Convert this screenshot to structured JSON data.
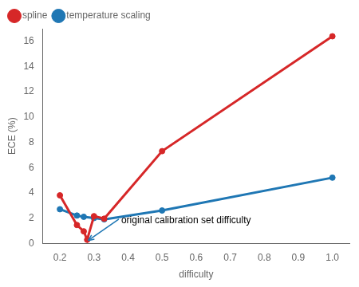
{
  "chart_data": {
    "type": "line",
    "xlabel": "difficulty",
    "ylabel": "ECE (%)",
    "series": [
      {
        "name": "spline",
        "color": "#d62728",
        "marker": "circle",
        "x": [
          0.2,
          0.25,
          0.27,
          0.28,
          0.3,
          0.33,
          0.5,
          1.0
        ],
        "values": [
          3.8,
          1.45,
          0.95,
          0.28,
          2.15,
          1.95,
          7.3,
          16.4
        ]
      },
      {
        "name": "temperature scaling",
        "color": "#1f77b4",
        "marker": "circle",
        "x": [
          0.2,
          0.25,
          0.27,
          0.3,
          0.33,
          0.5,
          1.0
        ],
        "values": [
          2.7,
          2.2,
          2.1,
          2.0,
          1.9,
          2.6,
          5.2
        ]
      }
    ],
    "xlim": [
      0.15,
      1.05
    ],
    "ylim": [
      0,
      17
    ],
    "xticks": [
      0.2,
      0.3,
      0.4,
      0.5,
      0.6,
      0.7,
      0.8,
      0.9,
      {
        "value": 1.0,
        "label": "1.0"
      }
    ],
    "yticks": [
      0,
      2,
      4,
      6,
      8,
      10,
      12,
      14,
      16
    ],
    "annotations": [
      {
        "text": "original calibration set difficulty",
        "xy": [
          0.283,
          0.22
        ],
        "xytext": [
          0.38,
          1.6
        ],
        "color": "#1f77b4"
      }
    ],
    "legend": "upper left",
    "grid": false
  }
}
